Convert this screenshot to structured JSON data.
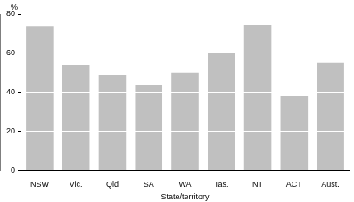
{
  "chart_data": {
    "type": "bar",
    "y_label": "%",
    "x_label": "State/territory",
    "categories": [
      "NSW",
      "Vic.",
      "Qld",
      "SA",
      "WA",
      "Tas.",
      "NT",
      "ACT",
      "Aust."
    ],
    "values": [
      74,
      54,
      49,
      44,
      50,
      60,
      74.5,
      38,
      55
    ],
    "color": "#c0c0c0",
    "ylim": [
      0,
      80
    ],
    "yticks": [
      0,
      20,
      40,
      60,
      80
    ],
    "grid": true
  }
}
